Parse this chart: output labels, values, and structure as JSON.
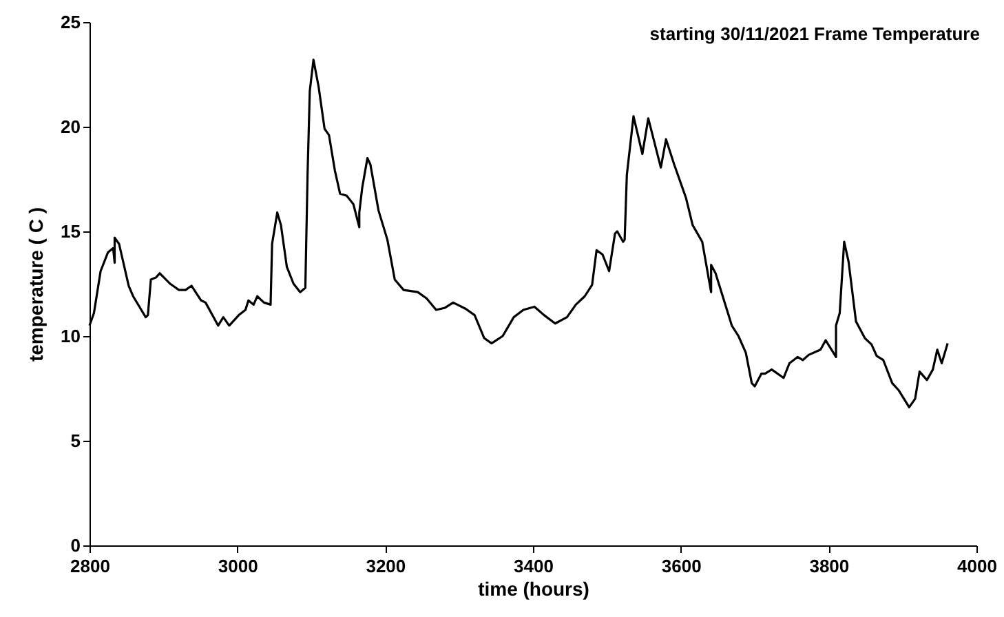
{
  "chart_data": {
    "type": "line",
    "title": "starting 30/11/2021 Frame Temperature",
    "xlabel": "time (hours)",
    "ylabel": "temperature ( C )",
    "xlim": [
      2800,
      4000
    ],
    "xticks": [
      2800,
      3000,
      3200,
      3400,
      3600,
      3800,
      4000
    ],
    "ylim": [
      0,
      25
    ],
    "yticks": [
      0,
      5,
      10,
      15,
      20,
      25
    ],
    "grid": false,
    "marker": "none",
    "line_style": "solid",
    "x": [
      2800,
      2806,
      2815,
      2825,
      2832,
      2834,
      2834,
      2840,
      2853,
      2859,
      2876,
      2879,
      2883,
      2890,
      2895,
      2909,
      2921,
      2930,
      2938,
      2951,
      2957,
      2974,
      2981,
      2989,
      3002,
      3011,
      3015,
      3022,
      3027,
      3036,
      3045,
      3047,
      3054,
      3059,
      3067,
      3076,
      3085,
      3092,
      3095,
      3098,
      3103,
      3110,
      3118,
      3124,
      3132,
      3139,
      3148,
      3157,
      3165,
      3165,
      3169,
      3176,
      3180,
      3191,
      3203,
      3213,
      3225,
      3244,
      3256,
      3269,
      3281,
      3292,
      3309,
      3321,
      3334,
      3344,
      3359,
      3374,
      3387,
      3402,
      3415,
      3430,
      3446,
      3458,
      3470,
      3480,
      3486,
      3494,
      3503,
      3511,
      3514,
      3522,
      3524,
      3527,
      3536,
      3548,
      3556,
      3573,
      3580,
      3591,
      3607,
      3616,
      3629,
      3641,
      3641,
      3647,
      3669,
      3678,
      3688,
      3696,
      3700,
      3709,
      3714,
      3723,
      3739,
      3747,
      3758,
      3765,
      3773,
      3789,
      3796,
      3810,
      3810,
      3815,
      3821,
      3827,
      3837,
      3849,
      3858,
      3865,
      3874,
      3886,
      3895,
      3909,
      3917,
      3923,
      3933,
      3941,
      3947,
      3953,
      3961
    ],
    "series": [
      {
        "color": "#000000",
        "values": [
          10.5,
          11.1,
          13.1,
          14.0,
          14.2,
          13.5,
          14.7,
          14.4,
          12.4,
          11.9,
          10.9,
          11.0,
          12.7,
          12.8,
          13.0,
          12.5,
          12.2,
          12.2,
          12.4,
          11.7,
          11.6,
          10.5,
          10.9,
          10.5,
          11.0,
          11.25,
          11.7,
          11.5,
          11.9,
          11.6,
          11.5,
          14.4,
          15.9,
          15.3,
          13.3,
          12.5,
          12.1,
          12.3,
          17.7,
          21.7,
          23.2,
          21.9,
          19.9,
          19.6,
          17.9,
          16.8,
          16.7,
          16.3,
          15.2,
          15.9,
          17.1,
          18.5,
          18.2,
          16.0,
          14.6,
          12.7,
          12.2,
          12.1,
          11.8,
          11.25,
          11.35,
          11.6,
          11.3,
          11.0,
          9.9,
          9.65,
          10.0,
          10.9,
          11.25,
          11.4,
          11.0,
          10.6,
          10.9,
          11.5,
          11.9,
          12.45,
          14.1,
          13.9,
          13.1,
          14.9,
          15.0,
          14.5,
          14.6,
          17.7,
          20.5,
          18.7,
          20.4,
          18.05,
          19.4,
          18.2,
          16.6,
          15.3,
          14.5,
          12.1,
          13.4,
          13.0,
          10.5,
          10.0,
          9.2,
          7.75,
          7.6,
          8.2,
          8.2,
          8.4,
          8.0,
          8.7,
          9.0,
          8.85,
          9.1,
          9.35,
          9.8,
          9.0,
          10.5,
          11.1,
          14.5,
          13.55,
          10.7,
          9.9,
          9.6,
          9.05,
          8.85,
          7.75,
          7.4,
          6.6,
          7.0,
          8.3,
          7.9,
          8.4,
          9.35,
          8.7,
          9.65
        ]
      }
    ]
  }
}
